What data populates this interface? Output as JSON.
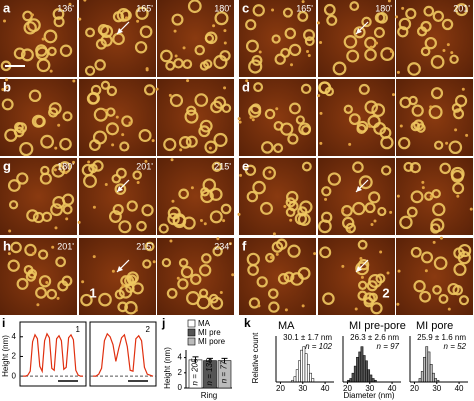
{
  "afm": {
    "left_column": [
      {
        "letter": "a",
        "times": [
          "136'",
          "165'",
          "180'"
        ]
      },
      {
        "letter": "b",
        "times": []
      },
      {
        "letter": "g",
        "times": [
          "180'",
          "201'",
          "215'"
        ]
      },
      {
        "letter": "h",
        "times": [
          "201'",
          "215'",
          "234'"
        ],
        "annotation": "1"
      }
    ],
    "right_column": [
      {
        "letter": "c",
        "times": [
          "165'",
          "180'",
          "201'"
        ]
      },
      {
        "letter": "d",
        "times": []
      },
      {
        "letter": "e",
        "times": []
      },
      {
        "letter": "f",
        "times": [],
        "annotation": "2"
      }
    ]
  },
  "profiles": {
    "letter": "i",
    "y_label": "Height (nm)",
    "ylim": [
      -1,
      5.5
    ],
    "yticks": [
      0,
      2,
      4
    ],
    "traces": [
      {
        "label": "1",
        "values": [
          0,
          0,
          0.1,
          0.5,
          3.5,
          4.2,
          3.8,
          1,
          0.5,
          3.6,
          4.3,
          3.9,
          0.8,
          0.6,
          3.8,
          4.1,
          3.6,
          0.7,
          0.9,
          3.9,
          4.2,
          3.7,
          0.6,
          0.1,
          0,
          0
        ]
      },
      {
        "label": "2",
        "values": [
          0,
          0,
          0.2,
          0.8,
          3.6,
          4.3,
          4.0,
          3.2,
          1.5,
          2.8,
          3.9,
          4.2,
          3.0,
          0.6,
          0.5,
          3.8,
          4.1,
          3.6,
          0.9,
          0.2,
          0.1,
          0
        ]
      }
    ]
  },
  "bar": {
    "type": "bar",
    "letter": "j",
    "y_label": "Height (nm)",
    "x_label": "Ring",
    "ylim": [
      0,
      5
    ],
    "yticks": [
      0,
      2,
      4
    ],
    "series": [
      {
        "name": "MA",
        "color": "#ffffff",
        "value": 3.7,
        "error": 0.4,
        "n_label": "n = 205"
      },
      {
        "name": "MI pre",
        "color": "#555555",
        "value": 3.6,
        "error": 0.3,
        "n_label": "n = 135"
      },
      {
        "name": "MI pore",
        "color": "#bbbbbb",
        "value": 3.6,
        "error": 0.3,
        "n_label": "n = 77"
      }
    ]
  },
  "histograms": {
    "letter": "k",
    "y_label": "Relative count",
    "x_label": "Diameter (nm)",
    "xlim": [
      18,
      44
    ],
    "ylim": [
      0,
      1.3
    ],
    "xticks": [
      20,
      30,
      40
    ],
    "panels": [
      {
        "title": "MA",
        "stat": "30.1 ± 1.7 nm",
        "n": "n = 102",
        "color": "#ffffff",
        "bins": [
          25,
          26,
          27,
          28,
          29,
          30,
          31,
          32,
          33,
          34,
          35
        ],
        "counts": [
          0.05,
          0.15,
          0.35,
          0.6,
          0.9,
          1.0,
          0.8,
          0.5,
          0.25,
          0.1
        ]
      },
      {
        "title": "MI pre-pore",
        "stat": "26.3 ± 2.6 nm",
        "n": "n = 97",
        "color": "#555555",
        "bins": [
          20,
          21,
          22,
          23,
          24,
          25,
          26,
          27,
          28,
          29,
          30,
          31,
          32,
          33
        ],
        "counts": [
          0.05,
          0.1,
          0.25,
          0.45,
          0.7,
          0.85,
          1.0,
          0.75,
          0.6,
          0.35,
          0.2,
          0.1,
          0.05
        ]
      },
      {
        "title": "MI pore",
        "stat": "25.9 ± 1.6 nm",
        "n": "n = 52",
        "color": "#bbbbbb",
        "bins": [
          22,
          23,
          24,
          25,
          26,
          27,
          28,
          29,
          30,
          31
        ],
        "counts": [
          0.1,
          0.3,
          0.7,
          1.0,
          0.85,
          0.5,
          0.25,
          0.1,
          0.05
        ]
      }
    ]
  }
}
